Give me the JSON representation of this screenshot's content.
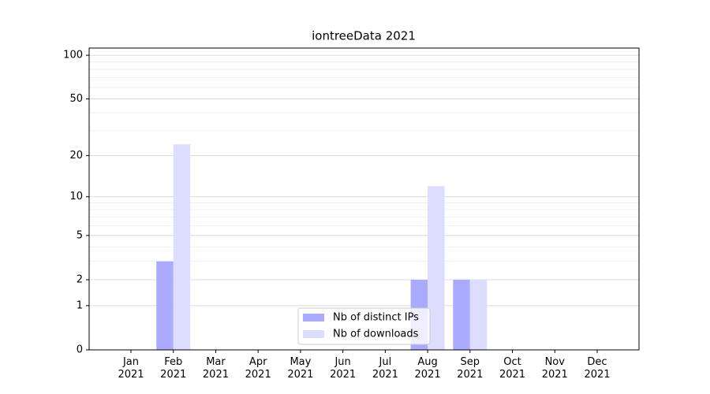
{
  "chart_data": {
    "type": "bar",
    "title": "iontreeData 2021",
    "categories": [
      "Jan\n2021",
      "Feb\n2021",
      "Mar\n2021",
      "Apr\n2021",
      "May\n2021",
      "Jun\n2021",
      "Jul\n2021",
      "Aug\n2021",
      "Sep\n2021",
      "Oct\n2021",
      "Nov\n2021",
      "Dec\n2021"
    ],
    "series": [
      {
        "name": "Nb of distinct IPs",
        "color": "#aaaaff",
        "values": [
          0,
          3,
          0,
          0,
          0,
          0,
          0,
          2,
          2,
          0,
          0,
          0
        ]
      },
      {
        "name": "Nb of downloads",
        "color": "#ddddff",
        "values": [
          0,
          24,
          0,
          0,
          0,
          0,
          0,
          12,
          2,
          0,
          0,
          0
        ]
      }
    ],
    "yscale": "log1p",
    "ylim": [
      0,
      112
    ],
    "yticks": [
      0,
      1,
      2,
      5,
      10,
      20,
      50,
      100
    ],
    "minor_yticks": [
      3,
      4,
      6,
      7,
      8,
      9,
      30,
      40,
      60,
      70,
      80,
      90
    ],
    "grid": true,
    "legend": "lower center"
  }
}
